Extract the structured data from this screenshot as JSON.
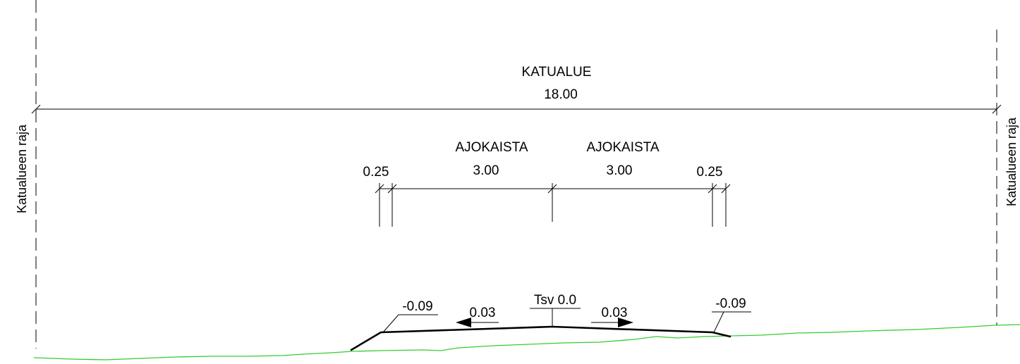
{
  "boundary": {
    "left_label": "Katualueen raja",
    "right_label": "Katualueen raja"
  },
  "street_area": {
    "label": "KATUALUE",
    "width": "18.00"
  },
  "lanes": {
    "left_label": "AJOKAISTA",
    "right_label": "AJOKAISTA",
    "left_width": "3.00",
    "right_width": "3.00",
    "left_edge_width": "0.25",
    "right_edge_width": "0.25"
  },
  "profile": {
    "center_label": "Tsv 0.0",
    "left_edge_height": "-0.09",
    "right_edge_height": "-0.09",
    "left_slope": "0.03",
    "right_slope": "0.03"
  },
  "colors": {
    "ground": "#33cc33",
    "lines": "#000000"
  }
}
